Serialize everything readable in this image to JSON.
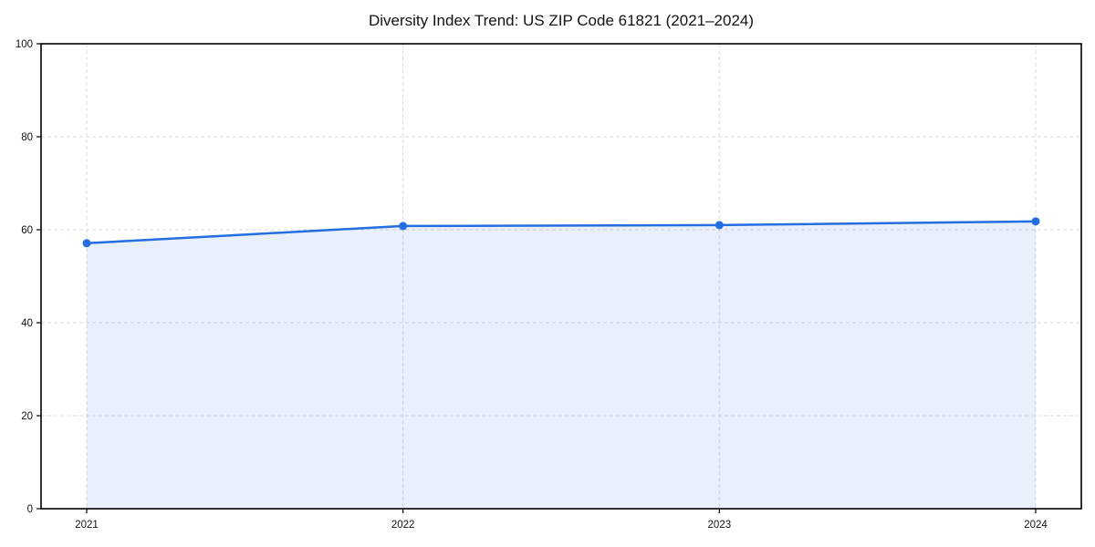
{
  "chart_data": {
    "type": "line",
    "title": "Diversity Index Trend: US ZIP Code 61821 (2021–2024)",
    "x": [
      "2021",
      "2022",
      "2023",
      "2024"
    ],
    "series": [
      {
        "name": "Diversity Index",
        "values": [
          57.1,
          60.8,
          61.0,
          61.8
        ]
      }
    ],
    "xlabel": "",
    "ylabel": "",
    "ylim": [
      0,
      100
    ],
    "yticks": [
      0,
      20,
      40,
      60,
      80,
      100
    ],
    "grid": true,
    "grid_style": "dashed",
    "grid_color": "#dcdcdc",
    "legend_position": "none",
    "marker": "circle",
    "line_color": "#236ee1",
    "fill_color": "rgba(35,110,225,0.10)",
    "axis_color": "#000000",
    "tick_label_color": "#111111"
  }
}
